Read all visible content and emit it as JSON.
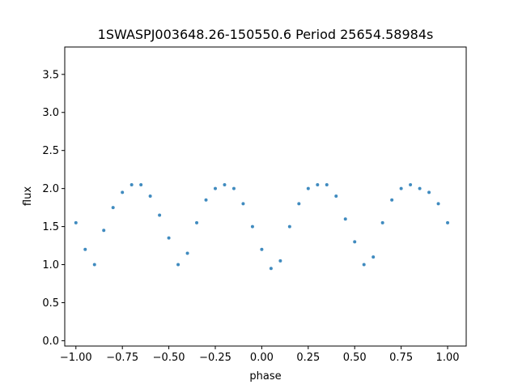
{
  "chart_data": {
    "type": "scatter",
    "title": "1SWASPJ003648.26-150550.6 Period 25654.58984s",
    "xlabel": "phase",
    "ylabel": "flux",
    "xlim": [
      -1.06,
      1.1
    ],
    "ylim": [
      -0.07,
      3.86
    ],
    "x_ticks": [
      -1.0,
      -0.75,
      -0.5,
      -0.25,
      0.0,
      0.25,
      0.5,
      0.75,
      1.0
    ],
    "x_tick_labels": [
      "−1.00",
      "−0.75",
      "−0.50",
      "−0.25",
      "0.00",
      "0.25",
      "0.50",
      "0.75",
      "1.00"
    ],
    "y_ticks": [
      0.0,
      0.5,
      1.0,
      1.5,
      2.0,
      2.5,
      3.0,
      3.5
    ],
    "y_tick_labels": [
      "0.0",
      "0.5",
      "1.0",
      "1.5",
      "2.0",
      "2.5",
      "3.0",
      "3.5"
    ],
    "grid": false,
    "point_color": "#1f77b4",
    "series": [
      {
        "x": [
          -1.0,
          -0.95,
          -0.9,
          -0.85,
          -0.8,
          -0.75,
          -0.7,
          -0.65,
          -0.6,
          -0.55,
          -0.5,
          -0.45,
          -0.4,
          -0.35,
          -0.3,
          -0.25,
          -0.2,
          -0.15,
          -0.1,
          -0.05,
          0.0,
          0.05,
          0.1,
          0.15,
          0.2,
          0.25,
          0.3,
          0.35,
          0.4,
          0.45,
          0.5,
          0.55,
          0.6,
          0.65,
          0.7,
          0.75,
          0.8,
          0.85,
          0.9,
          0.95,
          1.0
        ],
        "y": [
          1.55,
          1.2,
          1.0,
          1.45,
          1.75,
          1.95,
          2.05,
          2.05,
          1.9,
          1.65,
          1.35,
          1.0,
          1.15,
          1.55,
          1.85,
          2.0,
          2.05,
          2.0,
          1.8,
          1.5,
          1.2,
          0.95,
          1.05,
          1.5,
          1.8,
          2.0,
          2.05,
          2.05,
          1.9,
          1.6,
          1.3,
          1.0,
          1.1,
          1.55,
          1.85,
          2.0,
          2.05,
          2.0,
          1.95,
          1.8,
          1.55
        ]
      }
    ]
  }
}
